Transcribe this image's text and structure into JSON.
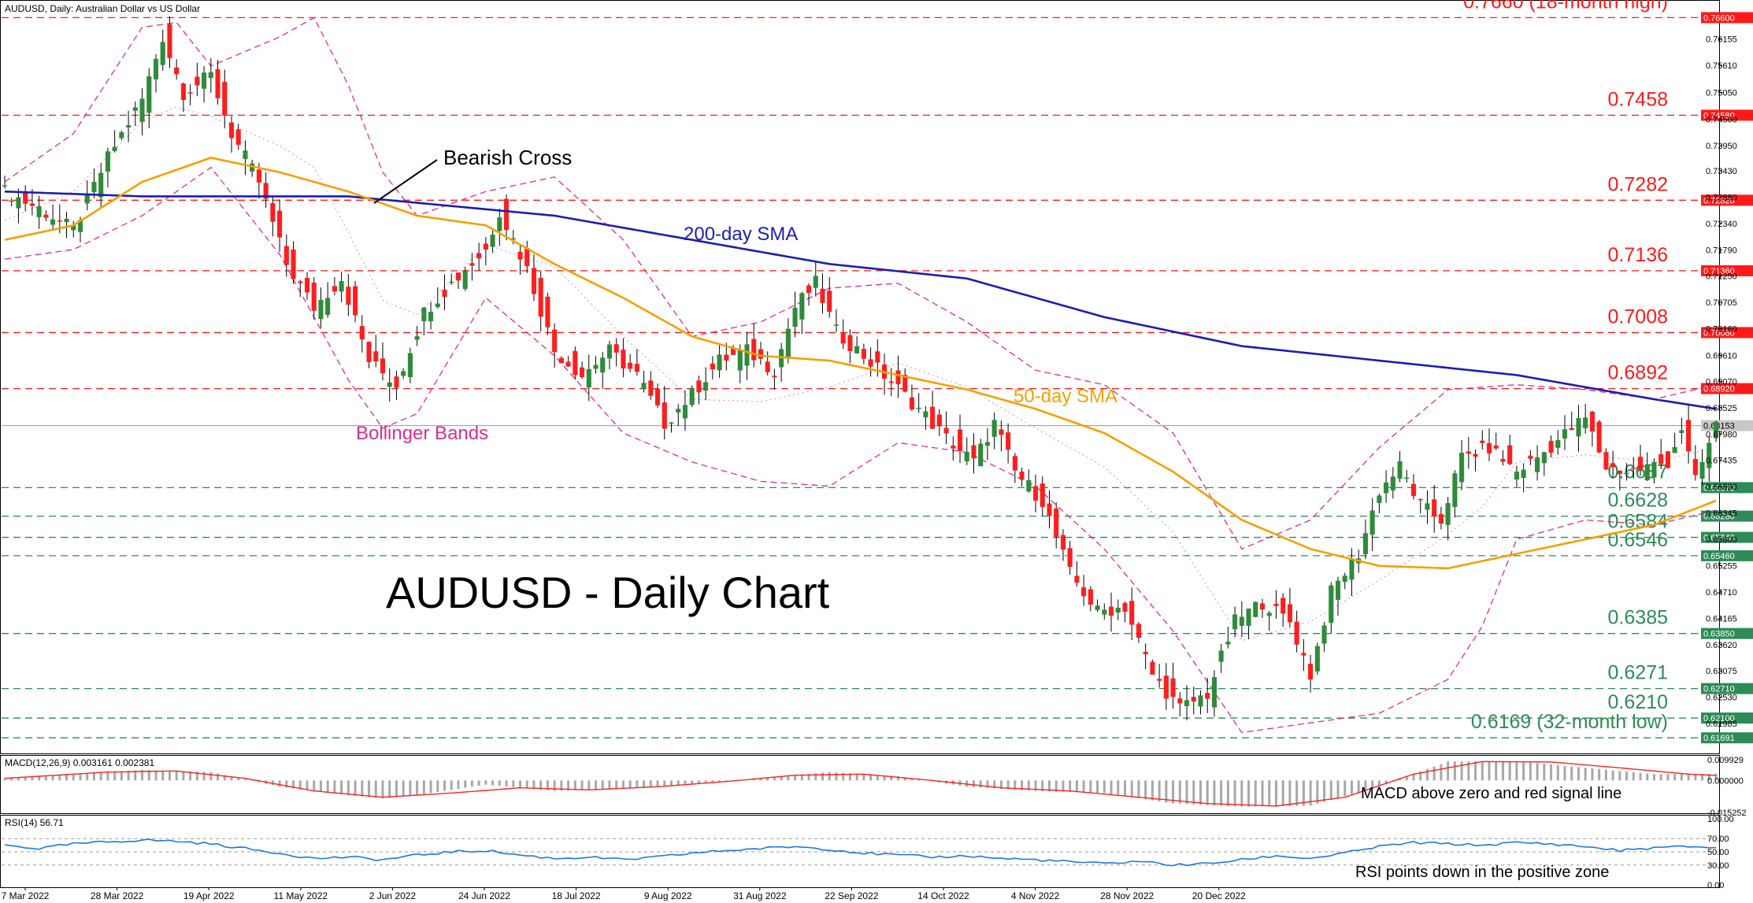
{
  "header": {
    "symbol_line": "AUDUSD, Daily:  Australian Dollar vs US Dollar"
  },
  "colors": {
    "bull": "#2e8b3a",
    "bear": "#ff1e1e",
    "sma200": "#1c1cb4",
    "sma50": "#f5a000",
    "bollinger": "#d82f93",
    "resistance": "#ff1a1a",
    "support": "#2e8b57",
    "macd_hist": "#a8a8a8",
    "macd_signal": "#ff2020",
    "rsi": "#1e78e0",
    "price_line": "#9a9a9a"
  },
  "chart_data": [
    {
      "type": "candlestick",
      "title": "AUDUSD - Daily Chart",
      "ylim": [
        0.614,
        0.769
      ],
      "x_tick_labels": [
        "7 Mar 2022",
        "28 Mar 2022",
        "19 Apr 2022",
        "11 May 2022",
        "2 Jun 2022",
        "24 Jun 2022",
        "18 Jul 2022",
        "9 Aug 2022",
        "31 Aug 2022",
        "22 Sep 2022",
        "14 Oct 2022",
        "4 Nov 2022",
        "28 Nov 2022",
        "20 Dec 2022"
      ],
      "y_tick_labels": [
        "0.76155",
        "0.75610",
        "0.75050",
        "0.74500",
        "0.73950",
        "0.73430",
        "0.72880",
        "0.72340",
        "0.71790",
        "0.71250",
        "0.70705",
        "0.70160",
        "0.69610",
        "0.69070",
        "0.68525",
        "0.67980",
        "0.67435",
        "0.66890",
        "0.66345",
        "0.65800",
        "0.65255",
        "0.64710",
        "0.64165",
        "0.63620",
        "0.63075",
        "0.62530",
        "0.61985"
      ],
      "current_price": "0.68153",
      "close_path": [
        [
          0,
          0.73
        ],
        [
          5,
          0.7265
        ],
        [
          10,
          0.722
        ],
        [
          15,
          0.737
        ],
        [
          20,
          0.749
        ],
        [
          23,
          0.762
        ],
        [
          26,
          0.7505
        ],
        [
          30,
          0.754
        ],
        [
          33,
          0.742
        ],
        [
          37,
          0.732
        ],
        [
          41,
          0.715
        ],
        [
          45,
          0.706
        ],
        [
          49,
          0.712
        ],
        [
          53,
          0.695
        ],
        [
          57,
          0.69
        ],
        [
          61,
          0.705
        ],
        [
          65,
          0.711
        ],
        [
          70,
          0.718
        ],
        [
          72,
          0.726
        ],
        [
          76,
          0.714
        ],
        [
          80,
          0.697
        ],
        [
          84,
          0.692
        ],
        [
          88,
          0.697
        ],
        [
          92,
          0.692
        ],
        [
          96,
          0.682
        ],
        [
          100,
          0.688
        ],
        [
          104,
          0.695
        ],
        [
          108,
          0.697
        ],
        [
          112,
          0.693
        ],
        [
          115,
          0.706
        ],
        [
          118,
          0.711
        ],
        [
          121,
          0.701
        ],
        [
          125,
          0.696
        ],
        [
          128,
          0.692
        ],
        [
          133,
          0.685
        ],
        [
          137,
          0.679
        ],
        [
          141,
          0.674
        ],
        [
          144,
          0.682
        ],
        [
          147,
          0.672
        ],
        [
          151,
          0.666
        ],
        [
          155,
          0.651
        ],
        [
          159,
          0.643
        ],
        [
          163,
          0.644
        ],
        [
          167,
          0.63
        ],
        [
          171,
          0.623
        ],
        [
          175,
          0.626
        ],
        [
          179,
          0.641
        ],
        [
          183,
          0.645
        ],
        [
          187,
          0.641
        ],
        [
          190,
          0.63
        ],
        [
          193,
          0.647
        ],
        [
          197,
          0.655
        ],
        [
          200,
          0.668
        ],
        [
          203,
          0.673
        ],
        [
          206,
          0.665
        ],
        [
          209,
          0.662
        ],
        [
          212,
          0.675
        ],
        [
          216,
          0.677
        ],
        [
          220,
          0.672
        ],
        [
          224,
          0.676
        ],
        [
          228,
          0.681
        ],
        [
          230,
          0.683
        ],
        [
          233,
          0.673
        ],
        [
          236,
          0.672
        ],
        [
          239,
          0.673
        ],
        [
          242,
          0.674
        ],
        [
          244,
          0.681
        ],
        [
          246,
          0.67
        ],
        [
          249,
          0.6815
        ]
      ],
      "sma200_path": [
        [
          0,
          0.73
        ],
        [
          20,
          0.729
        ],
        [
          50,
          0.729
        ],
        [
          80,
          0.725
        ],
        [
          100,
          0.72
        ],
        [
          120,
          0.715
        ],
        [
          140,
          0.712
        ],
        [
          160,
          0.704
        ],
        [
          180,
          0.698
        ],
        [
          200,
          0.695
        ],
        [
          220,
          0.692
        ],
        [
          240,
          0.687
        ],
        [
          249,
          0.685
        ]
      ],
      "sma50_path": [
        [
          0,
          0.72
        ],
        [
          10,
          0.723
        ],
        [
          20,
          0.732
        ],
        [
          30,
          0.737
        ],
        [
          40,
          0.734
        ],
        [
          50,
          0.73
        ],
        [
          60,
          0.725
        ],
        [
          70,
          0.723
        ],
        [
          80,
          0.715
        ],
        [
          90,
          0.708
        ],
        [
          100,
          0.7
        ],
        [
          110,
          0.696
        ],
        [
          120,
          0.695
        ],
        [
          130,
          0.692
        ],
        [
          140,
          0.689
        ],
        [
          150,
          0.685
        ],
        [
          160,
          0.68
        ],
        [
          170,
          0.672
        ],
        [
          180,
          0.662
        ],
        [
          190,
          0.656
        ],
        [
          200,
          0.6525
        ],
        [
          210,
          0.652
        ],
        [
          220,
          0.655
        ],
        [
          230,
          0.658
        ],
        [
          240,
          0.661
        ],
        [
          249,
          0.666
        ]
      ],
      "bollinger_upper_path": [
        [
          0,
          0.732
        ],
        [
          10,
          0.742
        ],
        [
          20,
          0.764
        ],
        [
          25,
          0.765
        ],
        [
          30,
          0.756
        ],
        [
          40,
          0.762
        ],
        [
          45,
          0.766
        ],
        [
          50,
          0.752
        ],
        [
          55,
          0.734
        ],
        [
          60,
          0.725
        ],
        [
          70,
          0.73
        ],
        [
          80,
          0.733
        ],
        [
          90,
          0.72
        ],
        [
          100,
          0.7
        ],
        [
          110,
          0.703
        ],
        [
          120,
          0.71
        ],
        [
          130,
          0.711
        ],
        [
          140,
          0.703
        ],
        [
          150,
          0.693
        ],
        [
          160,
          0.69
        ],
        [
          170,
          0.68
        ],
        [
          180,
          0.656
        ],
        [
          190,
          0.662
        ],
        [
          200,
          0.677
        ],
        [
          210,
          0.689
        ],
        [
          220,
          0.69
        ],
        [
          230,
          0.689
        ],
        [
          240,
          0.687
        ],
        [
          249,
          0.69
        ]
      ],
      "bollinger_lower_path": [
        [
          0,
          0.716
        ],
        [
          10,
          0.718
        ],
        [
          20,
          0.725
        ],
        [
          30,
          0.735
        ],
        [
          40,
          0.717
        ],
        [
          50,
          0.691
        ],
        [
          55,
          0.681
        ],
        [
          60,
          0.684
        ],
        [
          70,
          0.708
        ],
        [
          80,
          0.696
        ],
        [
          90,
          0.68
        ],
        [
          100,
          0.674
        ],
        [
          110,
          0.67
        ],
        [
          120,
          0.669
        ],
        [
          130,
          0.678
        ],
        [
          140,
          0.676
        ],
        [
          150,
          0.669
        ],
        [
          160,
          0.656
        ],
        [
          170,
          0.639
        ],
        [
          180,
          0.618
        ],
        [
          190,
          0.62
        ],
        [
          200,
          0.622
        ],
        [
          210,
          0.629
        ],
        [
          215,
          0.64
        ],
        [
          220,
          0.658
        ],
        [
          230,
          0.662
        ],
        [
          240,
          0.661
        ],
        [
          249,
          0.664
        ]
      ],
      "macd_hist_path": [
        [
          0,
          0.001
        ],
        [
          10,
          0.003
        ],
        [
          20,
          0.005
        ],
        [
          30,
          0.004
        ],
        [
          40,
          -0.003
        ],
        [
          50,
          -0.007
        ],
        [
          55,
          -0.0085
        ],
        [
          60,
          -0.007
        ],
        [
          70,
          -0.002
        ],
        [
          80,
          -0.005
        ],
        [
          90,
          -0.004
        ],
        [
          100,
          -0.002
        ],
        [
          110,
          0.001
        ],
        [
          120,
          0.004
        ],
        [
          130,
          0.002
        ],
        [
          140,
          -0.003
        ],
        [
          150,
          -0.005
        ],
        [
          160,
          -0.006
        ],
        [
          170,
          -0.011
        ],
        [
          180,
          -0.0125
        ],
        [
          190,
          -0.012
        ],
        [
          200,
          -0.003
        ],
        [
          210,
          0.009
        ],
        [
          220,
          0.0092
        ],
        [
          230,
          0.006
        ],
        [
          240,
          0.003
        ],
        [
          249,
          0.0032
        ]
      ],
      "macd_signal_path": [
        [
          0,
          0.001
        ],
        [
          15,
          0.004
        ],
        [
          25,
          0.0045
        ],
        [
          35,
          0.001
        ],
        [
          45,
          -0.005
        ],
        [
          55,
          -0.008
        ],
        [
          65,
          -0.006
        ],
        [
          75,
          -0.0035
        ],
        [
          85,
          -0.0045
        ],
        [
          95,
          -0.003
        ],
        [
          105,
          -0.0005
        ],
        [
          115,
          0.0025
        ],
        [
          125,
          0.003
        ],
        [
          135,
          0.0
        ],
        [
          145,
          -0.0035
        ],
        [
          155,
          -0.005
        ],
        [
          165,
          -0.008
        ],
        [
          175,
          -0.011
        ],
        [
          185,
          -0.0122
        ],
        [
          195,
          -0.008
        ],
        [
          205,
          0.003
        ],
        [
          215,
          0.009
        ],
        [
          225,
          0.0088
        ],
        [
          235,
          0.006
        ],
        [
          245,
          0.003
        ],
        [
          249,
          0.0024
        ]
      ],
      "rsi_path": [
        [
          0,
          60
        ],
        [
          5,
          55
        ],
        [
          10,
          62
        ],
        [
          15,
          65
        ],
        [
          20,
          68
        ],
        [
          25,
          66
        ],
        [
          30,
          62
        ],
        [
          35,
          55
        ],
        [
          40,
          48
        ],
        [
          45,
          40
        ],
        [
          50,
          42
        ],
        [
          55,
          38
        ],
        [
          60,
          45
        ],
        [
          65,
          50
        ],
        [
          70,
          52
        ],
        [
          75,
          45
        ],
        [
          80,
          40
        ],
        [
          85,
          42
        ],
        [
          90,
          38
        ],
        [
          95,
          42
        ],
        [
          100,
          48
        ],
        [
          105,
          52
        ],
        [
          110,
          55
        ],
        [
          115,
          58
        ],
        [
          120,
          54
        ],
        [
          125,
          48
        ],
        [
          130,
          45
        ],
        [
          135,
          42
        ],
        [
          140,
          44
        ],
        [
          145,
          40
        ],
        [
          150,
          38
        ],
        [
          155,
          35
        ],
        [
          160,
          32
        ],
        [
          165,
          36
        ],
        [
          170,
          30
        ],
        [
          175,
          32
        ],
        [
          180,
          38
        ],
        [
          185,
          44
        ],
        [
          190,
          40
        ],
        [
          195,
          48
        ],
        [
          200,
          58
        ],
        [
          205,
          64
        ],
        [
          210,
          62
        ],
        [
          215,
          60
        ],
        [
          220,
          64
        ],
        [
          225,
          62
        ],
        [
          230,
          58
        ],
        [
          235,
          52
        ],
        [
          240,
          56
        ],
        [
          245,
          58
        ],
        [
          249,
          56.7
        ]
      ]
    },
    {
      "type": "line",
      "name": "MACD",
      "indicator_label": "MACD(12,26,9) 0.003161 0.002381",
      "y_tick_labels": [
        "0.009929",
        "0.000000",
        "-0.015252"
      ],
      "ylim": [
        -0.015252,
        0.011
      ]
    },
    {
      "type": "line",
      "name": "RSI",
      "indicator_label": "RSI(14) 56.71",
      "y_tick_labels": [
        "100.00",
        "70.00",
        "50.00",
        "30.00",
        "0.00"
      ],
      "ylim": [
        0,
        100
      ]
    }
  ],
  "levels": [
    {
      "value": 0.766,
      "label": "0.7660 (18-month high)",
      "tag": "0.76600",
      "kind": "resistance"
    },
    {
      "value": 0.7458,
      "label": "0.7458",
      "tag": "0.74580",
      "kind": "resistance"
    },
    {
      "value": 0.7282,
      "label": "0.7282",
      "tag": "0.72820",
      "kind": "resistance"
    },
    {
      "value": 0.7136,
      "label": "0.7136",
      "tag": "0.71360",
      "kind": "resistance"
    },
    {
      "value": 0.7008,
      "label": "0.7008",
      "tag": "0.70080",
      "kind": "resistance"
    },
    {
      "value": 0.6892,
      "label": "0.6892",
      "tag": "0.68920",
      "kind": "resistance"
    },
    {
      "value": 0.6687,
      "label": "0.6687",
      "tag": "0.66870",
      "kind": "support"
    },
    {
      "value": 0.6628,
      "label": "0.6628",
      "tag": "0.66280",
      "kind": "support"
    },
    {
      "value": 0.6584,
      "label": "0.6584",
      "tag": "0.65840",
      "kind": "support"
    },
    {
      "value": 0.6546,
      "label": "0.6546",
      "tag": "0.65460",
      "kind": "support"
    },
    {
      "value": 0.6385,
      "label": "0.6385",
      "tag": "0.63850",
      "kind": "support"
    },
    {
      "value": 0.6271,
      "label": "0.6271",
      "tag": "0.62710",
      "kind": "support"
    },
    {
      "value": 0.621,
      "label": "0.6210",
      "tag": "0.62100",
      "kind": "support"
    },
    {
      "value": 0.6169,
      "label": "0.6169 (32-month low)",
      "tag": "0.61691",
      "kind": "support"
    }
  ],
  "annotations": {
    "bearish_cross": "Bearish Cross",
    "sma200": "200-day SMA",
    "sma50": "50-day SMA",
    "bollinger": "Bollinger Bands",
    "macd_note": "MACD above zero and red signal line",
    "rsi_note": "RSI points down in the positive zone"
  }
}
